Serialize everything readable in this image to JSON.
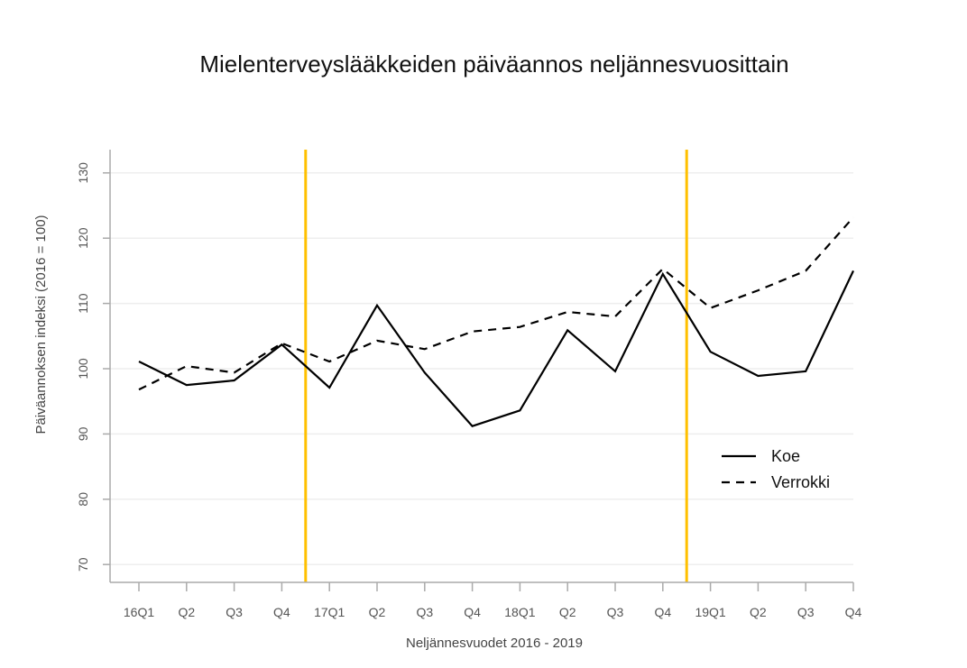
{
  "chart_data": {
    "type": "line",
    "title": "Mielenterveyslääkkeiden päiväannos neljännesvuosittain",
    "xlabel": "Neljännesvuodet 2016 - 2019",
    "ylabel": "Päiväannoksen indeksi (2016 = 100)",
    "categories": [
      "16Q1",
      "Q2",
      "Q3",
      "Q4",
      "17Q1",
      "Q2",
      "Q3",
      "Q4",
      "18Q1",
      "Q2",
      "Q3",
      "Q4",
      "19Q1",
      "Q2",
      "Q3",
      "Q4"
    ],
    "ylim": [
      67,
      133
    ],
    "yticks": [
      70,
      80,
      90,
      100,
      110,
      120,
      130
    ],
    "grid": true,
    "legend_position": "right",
    "vertical_markers": [
      {
        "between": [
          "Q4",
          "17Q1"
        ],
        "color": "#FFC000"
      },
      {
        "between": [
          "Q4",
          "19Q1"
        ],
        "color": "#FFC000"
      }
    ],
    "series": [
      {
        "name": "Koe",
        "style": "solid",
        "color": "#000000",
        "values": [
          101.1,
          97.5,
          98.2,
          103.7,
          97.1,
          109.7,
          99.4,
          91.2,
          93.6,
          105.9,
          99.6,
          114.5,
          102.6,
          98.9,
          99.6,
          115.0
        ]
      },
      {
        "name": "Verrokki",
        "style": "dashed",
        "color": "#000000",
        "values": [
          96.8,
          100.4,
          99.4,
          103.9,
          101.1,
          104.3,
          103.0,
          105.7,
          106.4,
          108.7,
          108.0,
          115.3,
          109.3,
          112.0,
          115.0,
          123.2
        ]
      }
    ]
  }
}
